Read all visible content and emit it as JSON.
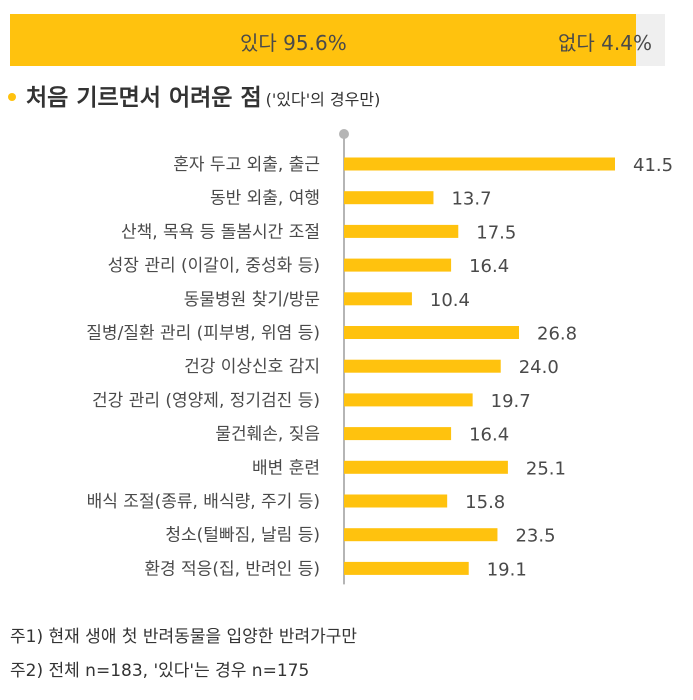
{
  "summary": {
    "yes_label": "있다",
    "yes_value": "95.6%",
    "no_label": "없다",
    "no_value": "4.4%",
    "yes_share": 95.6,
    "no_share": 4.4
  },
  "section": {
    "title": "처음 기르면서 어려운 점",
    "subtitle": "('있다'의 경우만)"
  },
  "chart_data": {
    "type": "bar",
    "orientation": "horizontal",
    "title": "처음 기르면서 어려운 점",
    "categories": [
      "혼자 두고 외출, 출근",
      "동반 외출, 여행",
      "산책, 목욕 등 돌봄시간 조절",
      "성장 관리 (이갈이, 중성화 등)",
      "동물병원 찾기/방문",
      "질병/질환 관리 (피부병, 위염 등)",
      "건강 이상신호 감지",
      "건강 관리 (영양제, 정기검진 등)",
      "물건훼손, 짖음",
      "배변 훈련",
      "배식 조절(종류, 배식량, 주기 등)",
      "청소(털빠짐, 날림 등)",
      "환경 적응(집, 반려인 등)"
    ],
    "values": [
      41.5,
      13.7,
      17.5,
      16.4,
      10.4,
      26.8,
      24.0,
      19.7,
      16.4,
      25.1,
      15.8,
      23.5,
      19.1
    ],
    "value_labels": [
      "41.5",
      "13.7",
      "17.5",
      "16.4",
      "10.4",
      "26.8",
      "24.0",
      "19.7",
      "16.4",
      "25.1",
      "15.8",
      "23.5",
      "19.1"
    ],
    "xlim": [
      0,
      41.5
    ],
    "colors": {
      "bar": "#FFC20E",
      "axis": "#b5b5b5"
    }
  },
  "notes": [
    "주1) 현재 생애 첫  반려동물을 입양한 반려가구만",
    "주2) 전체 n=183, '있다'는 경우 n=175"
  ]
}
